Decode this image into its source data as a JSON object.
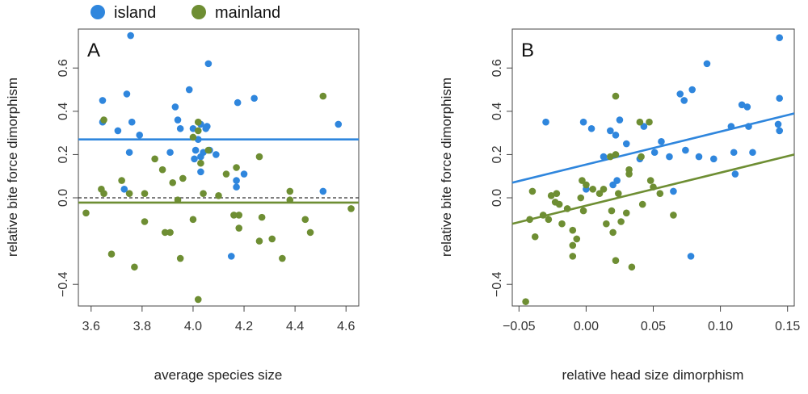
{
  "colors": {
    "island": "#2f86dd",
    "mainland": "#6e8e33",
    "zero_line": "#333333"
  },
  "legend": [
    {
      "label": "island",
      "color": "#2f86dd"
    },
    {
      "label": "mainland",
      "color": "#6e8e33"
    }
  ],
  "chart_data": [
    {
      "type": "scatter",
      "panel": "A",
      "xlabel": "average species size",
      "ylabel": "relative bite force dimorphism",
      "xlim": [
        3.55,
        4.65
      ],
      "ylim": [
        -0.5,
        0.78
      ],
      "xticks": [
        "3.6",
        "3.8",
        "4.0",
        "4.2",
        "4.4",
        "4.6"
      ],
      "xtick_values": [
        3.6,
        3.8,
        4.0,
        4.2,
        4.4,
        4.6
      ],
      "yticks": [
        "−0.4",
        "0.0",
        "0.2",
        "0.4",
        "0.6"
      ],
      "ytick_values": [
        -0.4,
        0.0,
        0.2,
        0.4,
        0.6
      ],
      "zero_line": 0.0,
      "fit_lines": [
        {
          "series": "island",
          "x": [
            3.55,
            4.65
          ],
          "y": [
            0.27,
            0.27
          ]
        },
        {
          "series": "mainland",
          "x": [
            3.55,
            4.65
          ],
          "y": [
            -0.022,
            -0.022
          ]
        }
      ],
      "series": [
        {
          "name": "island",
          "points": [
            [
              3.645,
              0.45
            ],
            [
              3.645,
              0.35
            ],
            [
              3.705,
              0.31
            ],
            [
              3.73,
              0.04
            ],
            [
              3.74,
              0.48
            ],
            [
              3.75,
              0.21
            ],
            [
              3.755,
              0.75
            ],
            [
              3.76,
              0.35
            ],
            [
              3.79,
              0.29
            ],
            [
              3.91,
              0.21
            ],
            [
              3.93,
              0.42
            ],
            [
              3.94,
              0.36
            ],
            [
              3.95,
              0.32
            ],
            [
              3.985,
              0.5
            ],
            [
              4.0,
              0.32
            ],
            [
              4.005,
              0.18
            ],
            [
              4.01,
              0.22
            ],
            [
              4.02,
              0.27
            ],
            [
              4.03,
              0.19
            ],
            [
              4.03,
              0.34
            ],
            [
              4.04,
              0.21
            ],
            [
              4.05,
              0.32
            ],
            [
              4.055,
              0.33
            ],
            [
              4.06,
              0.62
            ],
            [
              4.065,
              0.22
            ],
            [
              4.09,
              0.2
            ],
            [
              4.03,
              0.12
            ],
            [
              4.17,
              0.05
            ],
            [
              4.17,
              0.08
            ],
            [
              4.175,
              0.44
            ],
            [
              4.2,
              0.11
            ],
            [
              4.24,
              0.46
            ],
            [
              4.15,
              -0.27
            ],
            [
              4.51,
              0.03
            ],
            [
              4.57,
              0.34
            ]
          ]
        },
        {
          "name": "mainland",
          "points": [
            [
              3.58,
              -0.07
            ],
            [
              3.64,
              0.04
            ],
            [
              3.65,
              0.02
            ],
            [
              3.65,
              0.36
            ],
            [
              3.68,
              -0.26
            ],
            [
              3.72,
              0.08
            ],
            [
              3.75,
              0.02
            ],
            [
              3.77,
              -0.32
            ],
            [
              3.81,
              0.02
            ],
            [
              3.81,
              -0.11
            ],
            [
              3.85,
              0.18
            ],
            [
              3.88,
              0.13
            ],
            [
              3.89,
              -0.16
            ],
            [
              3.91,
              -0.16
            ],
            [
              3.92,
              0.07
            ],
            [
              3.94,
              -0.01
            ],
            [
              3.95,
              -0.28
            ],
            [
              3.96,
              0.09
            ],
            [
              4.0,
              0.28
            ],
            [
              4.0,
              -0.1
            ],
            [
              4.02,
              0.35
            ],
            [
              4.02,
              0.31
            ],
            [
              4.02,
              -0.47
            ],
            [
              4.03,
              0.16
            ],
            [
              4.04,
              0.02
            ],
            [
              4.06,
              0.22
            ],
            [
              4.1,
              0.01
            ],
            [
              4.13,
              0.11
            ],
            [
              4.16,
              -0.08
            ],
            [
              4.17,
              0.14
            ],
            [
              4.18,
              -0.14
            ],
            [
              4.18,
              -0.08
            ],
            [
              4.26,
              0.19
            ],
            [
              4.26,
              -0.2
            ],
            [
              4.27,
              -0.09
            ],
            [
              4.31,
              -0.19
            ],
            [
              4.35,
              -0.28
            ],
            [
              4.38,
              -0.01
            ],
            [
              4.38,
              0.03
            ],
            [
              4.44,
              -0.1
            ],
            [
              4.46,
              -0.16
            ],
            [
              4.51,
              0.47
            ],
            [
              4.62,
              -0.05
            ]
          ]
        }
      ]
    },
    {
      "type": "scatter",
      "panel": "B",
      "xlabel": "relative head size dimorphism",
      "ylabel": "relative bite force dimorphism",
      "xlim": [
        -0.055,
        0.155
      ],
      "ylim": [
        -0.5,
        0.78
      ],
      "xticks": [
        "−0.05",
        "0.00",
        "0.05",
        "0.10",
        "0.15"
      ],
      "xtick_values": [
        -0.05,
        0.0,
        0.05,
        0.1,
        0.15
      ],
      "yticks": [
        "−0.4",
        "0.0",
        "0.2",
        "0.4",
        "0.6"
      ],
      "ytick_values": [
        -0.4,
        0.0,
        0.2,
        0.4,
        0.6
      ],
      "fit_lines": [
        {
          "series": "island",
          "x": [
            -0.055,
            0.155
          ],
          "y": [
            0.07,
            0.39
          ]
        },
        {
          "series": "mainland",
          "x": [
            -0.055,
            0.155
          ],
          "y": [
            -0.12,
            0.2
          ]
        }
      ],
      "series": [
        {
          "name": "island",
          "points": [
            [
              -0.03,
              0.35
            ],
            [
              -0.002,
              0.35
            ],
            [
              0.0,
              0.04
            ],
            [
              0.004,
              0.32
            ],
            [
              0.013,
              0.19
            ],
            [
              0.018,
              0.31
            ],
            [
              0.02,
              0.06
            ],
            [
              0.022,
              0.29
            ],
            [
              0.023,
              0.08
            ],
            [
              0.025,
              0.36
            ],
            [
              0.03,
              0.25
            ],
            [
              0.04,
              0.18
            ],
            [
              0.043,
              0.33
            ],
            [
              0.051,
              0.21
            ],
            [
              0.056,
              0.26
            ],
            [
              0.062,
              0.19
            ],
            [
              0.065,
              0.03
            ],
            [
              0.07,
              0.48
            ],
            [
              0.073,
              0.45
            ],
            [
              0.074,
              0.22
            ],
            [
              0.079,
              0.5
            ],
            [
              0.084,
              0.19
            ],
            [
              0.09,
              0.62
            ],
            [
              0.095,
              0.18
            ],
            [
              0.108,
              0.33
            ],
            [
              0.11,
              0.21
            ],
            [
              0.111,
              0.11
            ],
            [
              0.116,
              0.43
            ],
            [
              0.12,
              0.42
            ],
            [
              0.121,
              0.33
            ],
            [
              0.124,
              0.21
            ],
            [
              0.143,
              0.34
            ],
            [
              0.144,
              0.74
            ],
            [
              0.144,
              0.46
            ],
            [
              0.144,
              0.31
            ],
            [
              0.078,
              -0.27
            ]
          ]
        },
        {
          "name": "mainland",
          "points": [
            [
              -0.045,
              -0.48
            ],
            [
              -0.042,
              -0.1
            ],
            [
              -0.04,
              0.03
            ],
            [
              -0.038,
              -0.18
            ],
            [
              -0.032,
              -0.08
            ],
            [
              -0.028,
              -0.1
            ],
            [
              -0.026,
              0.01
            ],
            [
              -0.023,
              -0.02
            ],
            [
              -0.022,
              0.02
            ],
            [
              -0.02,
              -0.03
            ],
            [
              -0.018,
              -0.12
            ],
            [
              -0.014,
              -0.05
            ],
            [
              -0.01,
              -0.27
            ],
            [
              -0.01,
              -0.15
            ],
            [
              -0.01,
              -0.22
            ],
            [
              -0.007,
              -0.19
            ],
            [
              -0.004,
              0.0
            ],
            [
              -0.003,
              0.08
            ],
            [
              -0.002,
              -0.06
            ],
            [
              0.0,
              0.06
            ],
            [
              0.005,
              0.04
            ],
            [
              0.01,
              0.02
            ],
            [
              0.013,
              0.04
            ],
            [
              0.015,
              -0.12
            ],
            [
              0.018,
              0.19
            ],
            [
              0.019,
              -0.06
            ],
            [
              0.02,
              -0.16
            ],
            [
              0.022,
              0.47
            ],
            [
              0.022,
              0.2
            ],
            [
              0.022,
              -0.29
            ],
            [
              0.024,
              0.02
            ],
            [
              0.026,
              -0.11
            ],
            [
              0.03,
              -0.07
            ],
            [
              0.032,
              0.13
            ],
            [
              0.032,
              0.11
            ],
            [
              0.034,
              -0.32
            ],
            [
              0.04,
              0.35
            ],
            [
              0.041,
              0.19
            ],
            [
              0.042,
              -0.03
            ],
            [
              0.047,
              0.35
            ],
            [
              0.048,
              0.08
            ],
            [
              0.05,
              0.05
            ],
            [
              0.055,
              0.02
            ],
            [
              0.065,
              -0.08
            ]
          ]
        }
      ]
    }
  ]
}
